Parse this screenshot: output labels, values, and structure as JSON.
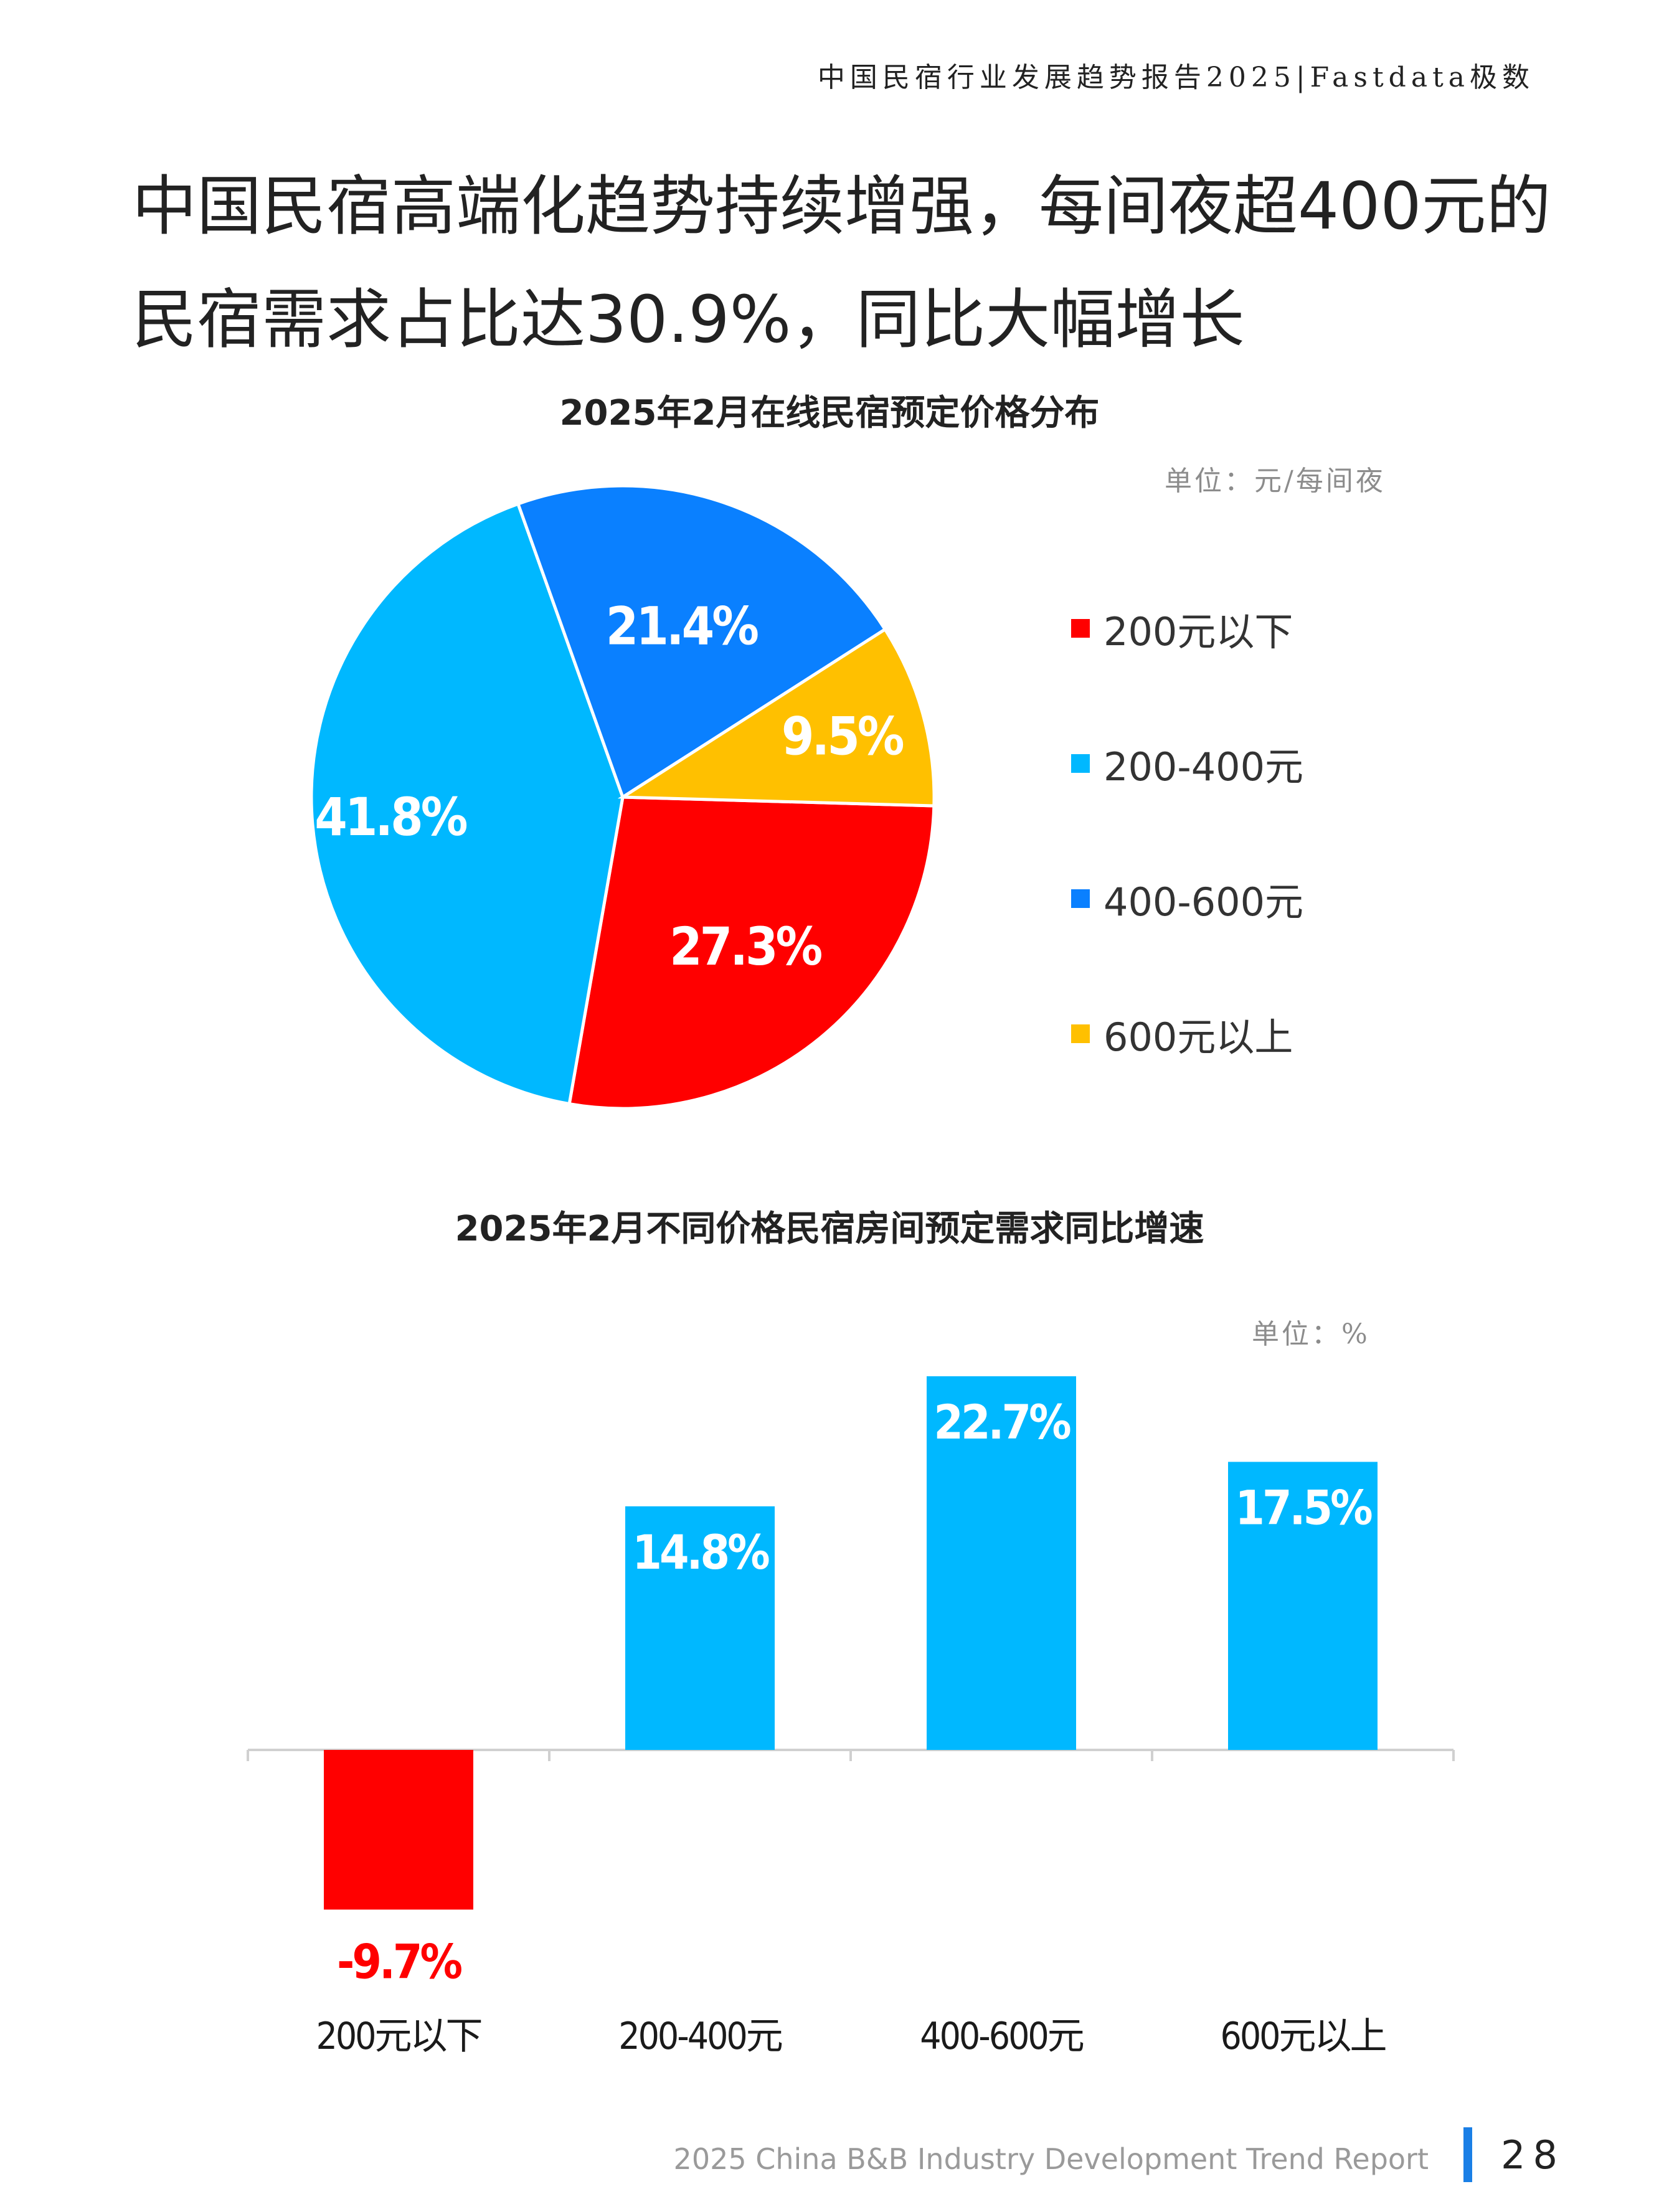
{
  "header": {
    "report_title": "中国民宿行业发展趋势报告2025|Fastdata极数"
  },
  "headline": {
    "line1": "中国民宿高端化趋势持续增强，每间夜超400元的",
    "line2": "民宿需求占比达30.9%，同比大幅增长"
  },
  "colors": {
    "red": "#ff0000",
    "light_blue": "#00b8ff",
    "blue": "#0a80ff",
    "gold": "#ffc000"
  },
  "chart_data": [
    {
      "type": "pie",
      "title": "2025年2月在线民宿预定价格分布",
      "unit": "单位：元/每间夜",
      "slices": [
        {
          "label": "200元以下",
          "value": 27.3,
          "display": "27.3%",
          "color": "#ff0000"
        },
        {
          "label": "200-400元",
          "value": 41.8,
          "display": "41.8%",
          "color": "#00b8ff"
        },
        {
          "label": "400-600元",
          "value": 21.4,
          "display": "21.4%",
          "color": "#0a80ff"
        },
        {
          "label": "600元以上",
          "value": 9.5,
          "display": "9.5%",
          "color": "#ffc000"
        }
      ],
      "legend_position": "right"
    },
    {
      "type": "bar",
      "title": "2025年2月不同价格民宿房间预定需求同比增速",
      "unit": "单位：%",
      "categories": [
        "200元以下",
        "200-400元",
        "400-600元",
        "600元以上"
      ],
      "values": [
        -9.7,
        14.8,
        22.7,
        17.5
      ],
      "labels": [
        "-9.7%",
        "14.8%",
        "22.7%",
        "17.5%"
      ],
      "colors": [
        "#ff0000",
        "#00b8ff",
        "#00b8ff",
        "#00b8ff"
      ],
      "ylim": [
        -9.7,
        22.7
      ],
      "grid": false
    }
  ],
  "footer": {
    "report_name": "2025 China B&B Industry Development Trend Report",
    "page": "28"
  }
}
